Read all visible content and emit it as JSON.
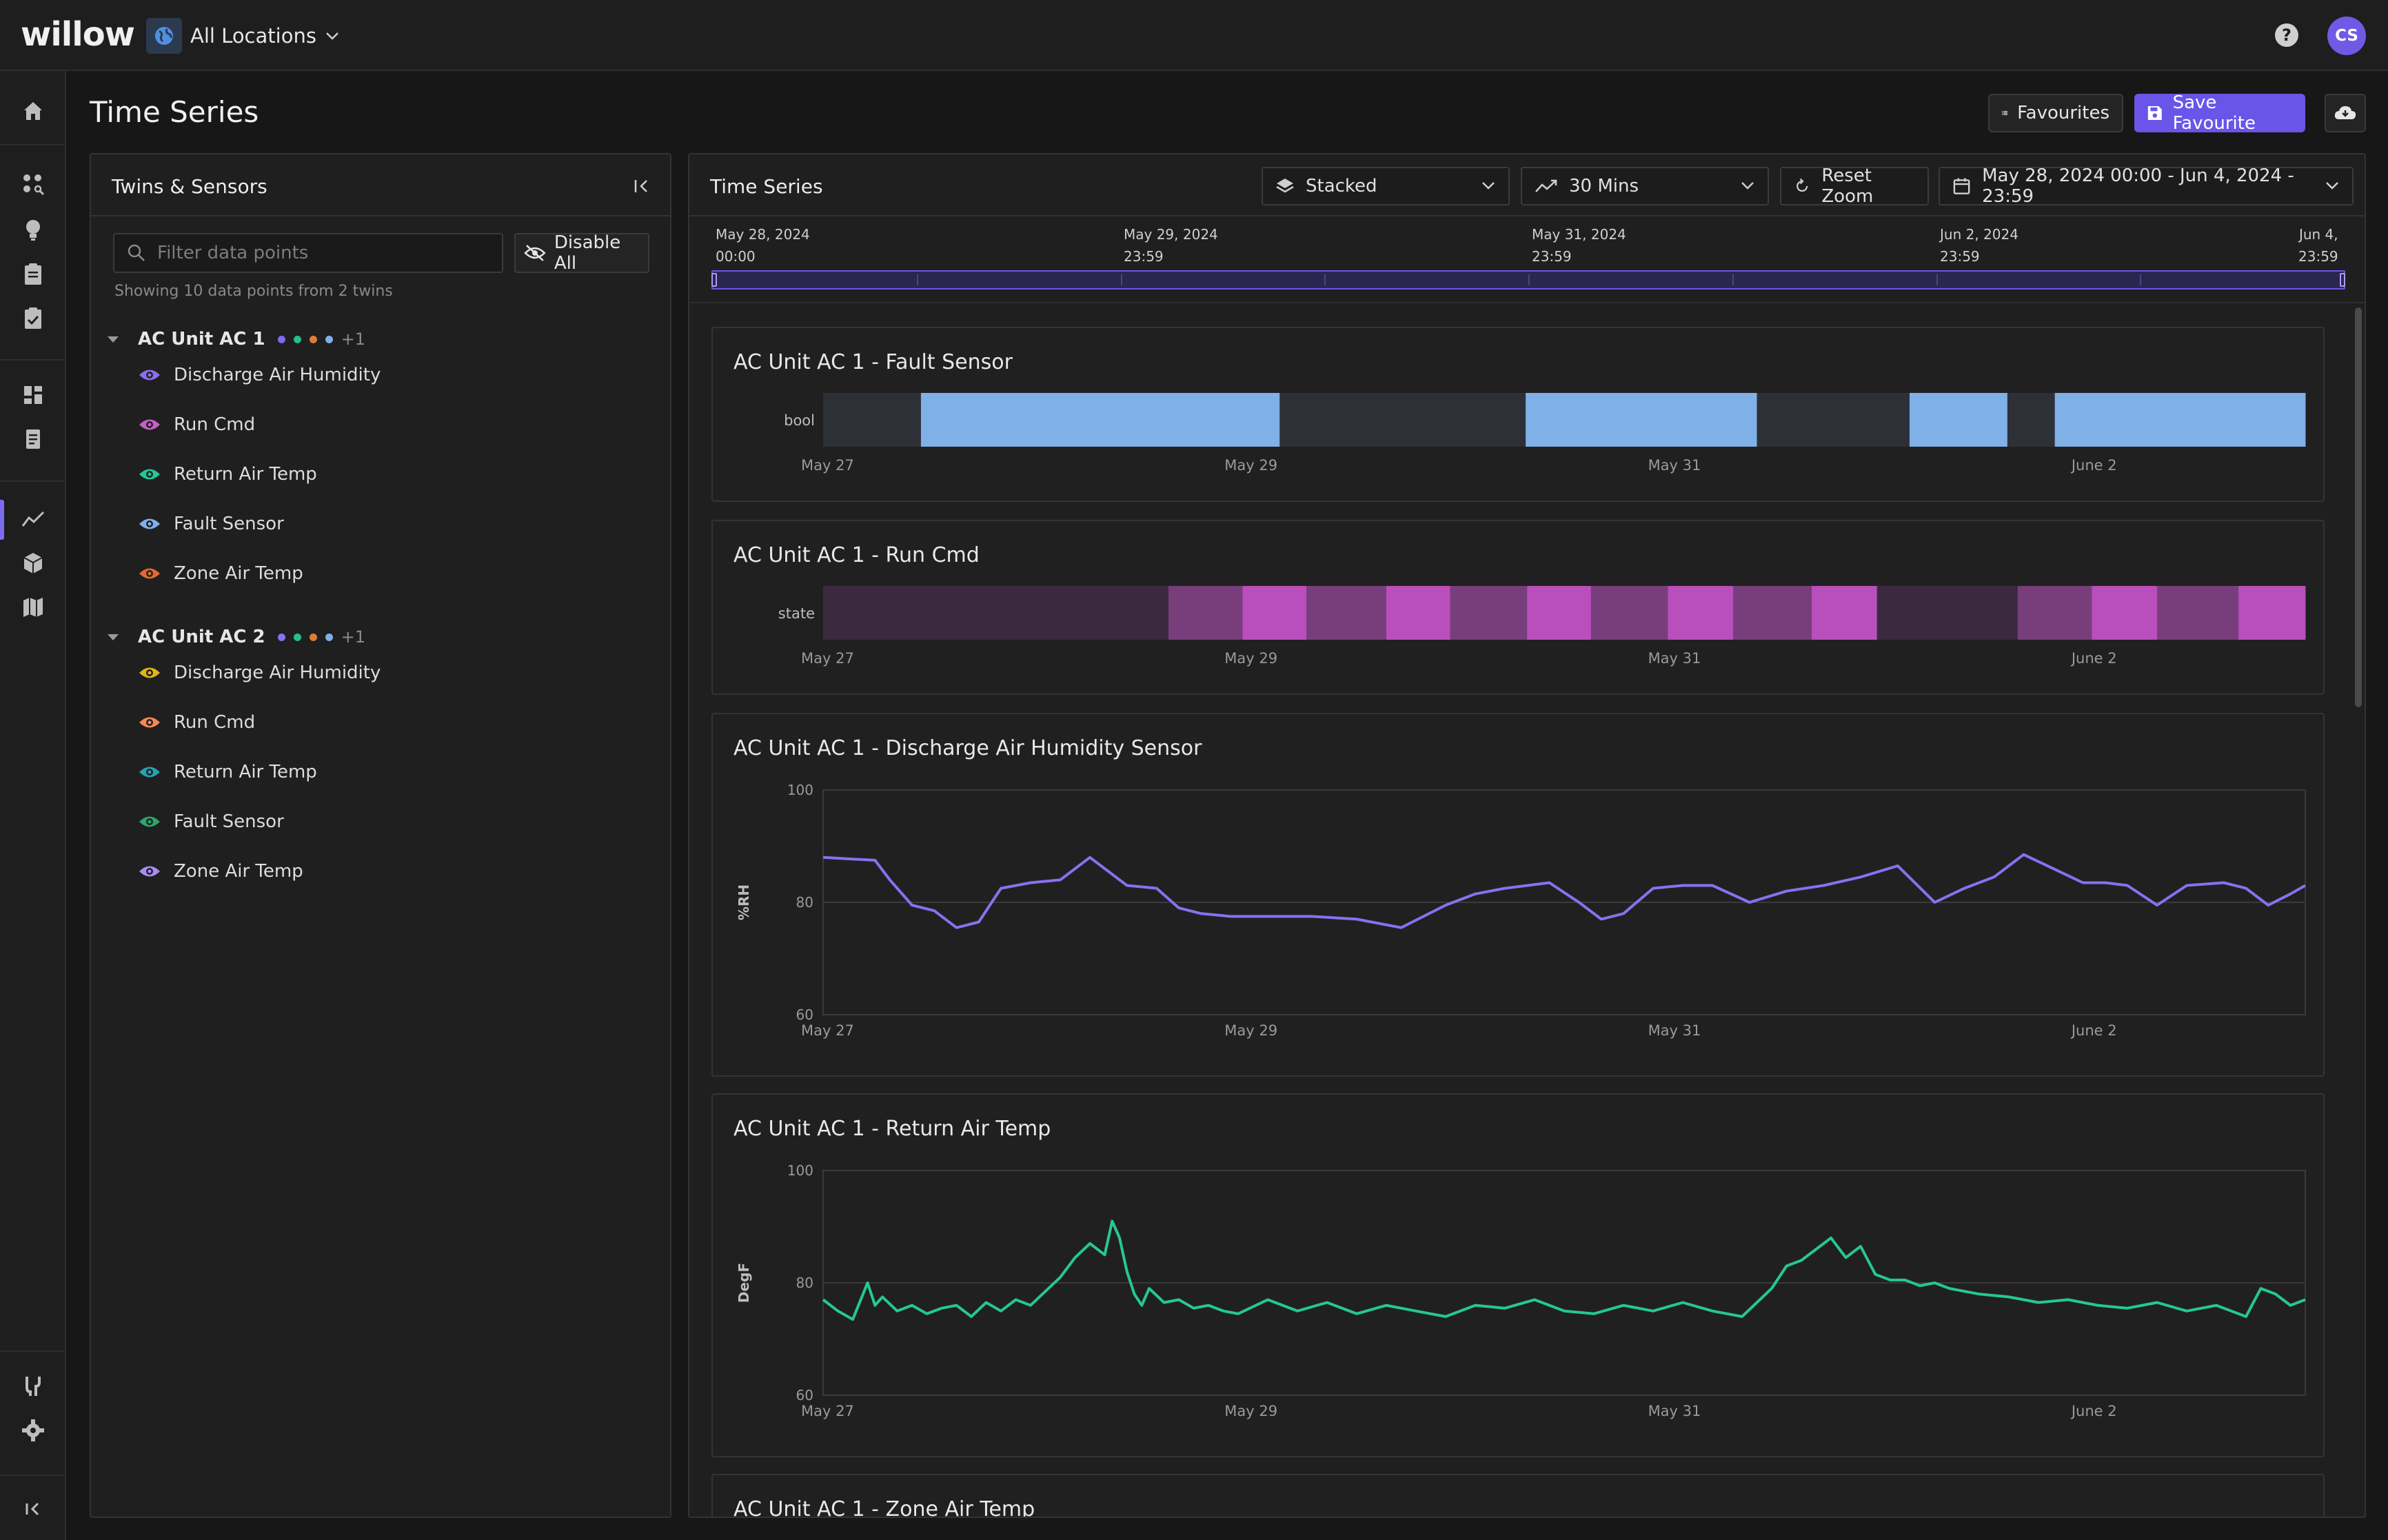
{
  "app": {
    "logo": "willow",
    "location_label": "All Locations",
    "avatar_initials": "CS",
    "help_glyph": "?"
  },
  "page": {
    "title": "Time Series",
    "favourites_label": "Favourites",
    "save_favourite_label": "Save Favourite"
  },
  "side_panel": {
    "title": "Twins & Sensors",
    "search_placeholder": "Filter data points",
    "disable_all_label": "Disable All",
    "showing_text": "Showing 10 data points from 2 twins",
    "twins": [
      {
        "name": "AC Unit AC 1",
        "dots": [
          "#7b6cf0",
          "#22c08a",
          "#e07b3a",
          "#7fb0e8"
        ],
        "more": "+1",
        "sensors": [
          {
            "label": "Discharge Air Humidity",
            "color": "#8b6ff0"
          },
          {
            "label": "Run Cmd",
            "color": "#c560c8"
          },
          {
            "label": "Return Air Temp",
            "color": "#25c795"
          },
          {
            "label": "Fault Sensor",
            "color": "#7fb0e8"
          },
          {
            "label": "Zone Air Temp",
            "color": "#e06a2c"
          }
        ]
      },
      {
        "name": "AC Unit AC 2",
        "dots": [
          "#8b6ff0",
          "#22c08a",
          "#e07b3a",
          "#7fb0e8"
        ],
        "more": "+1",
        "sensors": [
          {
            "label": "Discharge Air Humidity",
            "color": "#e0b21e"
          },
          {
            "label": "Run Cmd",
            "color": "#f08a5a"
          },
          {
            "label": "Return Air Temp",
            "color": "#2a9fb0"
          },
          {
            "label": "Fault Sensor",
            "color": "#2fa36b"
          },
          {
            "label": "Zone Air Temp",
            "color": "#a58cf5"
          }
        ]
      }
    ]
  },
  "main_panel": {
    "title": "Time Series",
    "layout_label": "Stacked",
    "interval_label": "30 Mins",
    "reset_zoom_label": "Reset Zoom",
    "date_range_label": "May 28, 2024 00:00 - Jun 4, 2024 - 23:59",
    "timeline_labels": [
      {
        "date": "May 28, 2024",
        "time": "00:00"
      },
      {
        "date": "May 29, 2024",
        "time": "23:59"
      },
      {
        "date": "May 31, 2024",
        "time": "23:59"
      },
      {
        "date": "Jun 2, 2024",
        "time": "23:59"
      },
      {
        "date": "Jun 4,",
        "time": "23:59"
      }
    ]
  },
  "chart_data": [
    {
      "type": "timeline",
      "title": "AC Unit AC 1 - Fault Sensor",
      "ylabel": "bool",
      "x_range": [
        "May 27",
        "June 3"
      ],
      "x_ticks": [
        "May 27",
        "May 29",
        "May 31",
        "June 2"
      ],
      "segments": [
        {
          "start": 0.0,
          "end": 0.066,
          "value": "false",
          "color": "#2d3036"
        },
        {
          "start": 0.066,
          "end": 0.308,
          "value": "true",
          "color": "#7fb0e8"
        },
        {
          "start": 0.308,
          "end": 0.474,
          "value": "false",
          "color": "#2d3036"
        },
        {
          "start": 0.474,
          "end": 0.63,
          "value": "true",
          "color": "#7fb0e8"
        },
        {
          "start": 0.63,
          "end": 0.733,
          "value": "false",
          "color": "#2d3036"
        },
        {
          "start": 0.733,
          "end": 0.799,
          "value": "true",
          "color": "#7fb0e8"
        },
        {
          "start": 0.799,
          "end": 0.831,
          "value": "false",
          "color": "#2d3036"
        },
        {
          "start": 0.831,
          "end": 1.0,
          "value": "true",
          "color": "#7fb0e8"
        }
      ]
    },
    {
      "type": "timeline",
      "title": "AC Unit AC 1 - Run Cmd",
      "ylabel": "state",
      "x_range": [
        "May 27",
        "June 3"
      ],
      "x_ticks": [
        "May 27",
        "May 29",
        "May 31",
        "June 2"
      ],
      "segments": [
        {
          "start": 0.0,
          "end": 0.233,
          "value": "off",
          "color": "#3b2a3f"
        },
        {
          "start": 0.233,
          "end": 0.283,
          "value": "standby",
          "color": "#783e7c"
        },
        {
          "start": 0.283,
          "end": 0.326,
          "value": "on",
          "color": "#b94fbc"
        },
        {
          "start": 0.326,
          "end": 0.38,
          "value": "standby",
          "color": "#783e7c"
        },
        {
          "start": 0.38,
          "end": 0.423,
          "value": "on",
          "color": "#b94fbc"
        },
        {
          "start": 0.423,
          "end": 0.475,
          "value": "standby",
          "color": "#783e7c"
        },
        {
          "start": 0.475,
          "end": 0.518,
          "value": "on",
          "color": "#b94fbc"
        },
        {
          "start": 0.518,
          "end": 0.57,
          "value": "standby",
          "color": "#783e7c"
        },
        {
          "start": 0.57,
          "end": 0.614,
          "value": "on",
          "color": "#b94fbc"
        },
        {
          "start": 0.614,
          "end": 0.667,
          "value": "standby",
          "color": "#783e7c"
        },
        {
          "start": 0.667,
          "end": 0.711,
          "value": "on",
          "color": "#b94fbc"
        },
        {
          "start": 0.711,
          "end": 0.806,
          "value": "off",
          "color": "#3b2a3f"
        },
        {
          "start": 0.806,
          "end": 0.856,
          "value": "standby",
          "color": "#783e7c"
        },
        {
          "start": 0.856,
          "end": 0.9,
          "value": "on",
          "color": "#b94fbc"
        },
        {
          "start": 0.9,
          "end": 0.955,
          "value": "standby",
          "color": "#783e7c"
        },
        {
          "start": 0.955,
          "end": 1.0,
          "value": "on",
          "color": "#b94fbc"
        }
      ]
    },
    {
      "type": "line",
      "title": "AC Unit AC 1 - Discharge Air Humidity Sensor",
      "ylabel": "%RH",
      "ylim": [
        60,
        100
      ],
      "y_ticks": [
        100,
        80,
        60
      ],
      "x_range": [
        "May 27",
        "June 3"
      ],
      "x_ticks": [
        "May 27",
        "May 29",
        "May 31",
        "June 2"
      ],
      "color": "#8b6ff0",
      "x": [
        0,
        0.02,
        0.035,
        0.045,
        0.06,
        0.075,
        0.09,
        0.105,
        0.12,
        0.14,
        0.16,
        0.18,
        0.205,
        0.225,
        0.24,
        0.255,
        0.275,
        0.3,
        0.33,
        0.36,
        0.39,
        0.42,
        0.44,
        0.46,
        0.49,
        0.51,
        0.525,
        0.54,
        0.56,
        0.58,
        0.6,
        0.625,
        0.65,
        0.675,
        0.7,
        0.725,
        0.75,
        0.77,
        0.79,
        0.81,
        0.83,
        0.85,
        0.865,
        0.88,
        0.9,
        0.92,
        0.945,
        0.96,
        0.975,
        0.99,
        1.0
      ],
      "y": [
        88,
        87.7,
        87.5,
        84,
        79.5,
        78.5,
        75.5,
        76.5,
        82.5,
        83.5,
        84,
        88,
        83,
        82.5,
        79,
        78,
        77.5,
        77.5,
        77.5,
        77,
        75.5,
        79.5,
        81.5,
        82.5,
        83.5,
        80,
        77,
        78,
        82.5,
        83,
        83,
        80,
        82,
        83,
        84.5,
        86.5,
        80,
        82.5,
        84.5,
        88.5,
        86,
        83.5,
        83.5,
        83,
        79.5,
        83,
        83.5,
        82.5,
        79.5,
        81.5,
        83
      ]
    },
    {
      "type": "line",
      "title": "AC Unit AC 1 - Return Air Temp",
      "ylabel": "DegF",
      "ylim": [
        60,
        100
      ],
      "y_ticks": [
        100,
        80,
        60
      ],
      "x_range": [
        "May 27",
        "June 3"
      ],
      "x_ticks": [
        "May 27",
        "May 29",
        "May 31",
        "June 2"
      ],
      "color": "#25c795",
      "x": [
        0,
        0.01,
        0.02,
        0.03,
        0.035,
        0.04,
        0.05,
        0.06,
        0.07,
        0.08,
        0.09,
        0.1,
        0.11,
        0.12,
        0.13,
        0.14,
        0.15,
        0.16,
        0.17,
        0.18,
        0.19,
        0.195,
        0.2,
        0.205,
        0.21,
        0.215,
        0.22,
        0.23,
        0.24,
        0.25,
        0.26,
        0.27,
        0.28,
        0.3,
        0.32,
        0.34,
        0.36,
        0.38,
        0.4,
        0.42,
        0.44,
        0.46,
        0.48,
        0.5,
        0.52,
        0.54,
        0.56,
        0.58,
        0.6,
        0.62,
        0.64,
        0.65,
        0.66,
        0.67,
        0.68,
        0.69,
        0.7,
        0.71,
        0.72,
        0.73,
        0.74,
        0.75,
        0.76,
        0.78,
        0.8,
        0.82,
        0.84,
        0.86,
        0.88,
        0.9,
        0.92,
        0.94,
        0.96,
        0.97,
        0.98,
        0.99,
        1.0
      ],
      "y": [
        77,
        75,
        73.5,
        80,
        76,
        77.5,
        75,
        76,
        74.5,
        75.5,
        76,
        74,
        76.5,
        75,
        77,
        76,
        78.5,
        81,
        84.5,
        87,
        85,
        91,
        88,
        82,
        78,
        76,
        79,
        76.5,
        77,
        75.5,
        76,
        75,
        74.5,
        77,
        75,
        76.5,
        74.5,
        76,
        75,
        74,
        76,
        75.5,
        77,
        75,
        74.5,
        76,
        75,
        76.5,
        75,
        74,
        79,
        83,
        84,
        86,
        88,
        84.5,
        86.5,
        81.5,
        80.5,
        80.5,
        79.5,
        80,
        79,
        78,
        77.5,
        76.5,
        77,
        76,
        75.5,
        76.5,
        75,
        76,
        74,
        79,
        78,
        76,
        77
      ]
    },
    {
      "type": "line",
      "title": "AC Unit AC 1 - Zone Air Temp"
    }
  ]
}
